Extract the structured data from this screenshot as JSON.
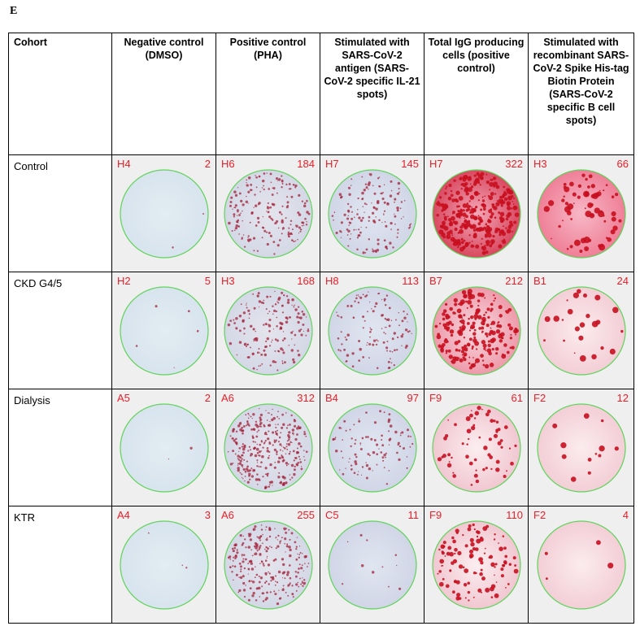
{
  "panel_letter": "E",
  "headers": [
    "Cohort",
    "Negative control (DMSO)",
    "Positive control (PHA)",
    "Stimulated with SARS-CoV-2 antigen (SARS-CoV-2 specific IL-21 spots)",
    "Total IgG producing cells (positive control)",
    "Stimulated with recombinant SARS-CoV-2 Spike His-tag Biotin Protein (SARS-CoV-2 specific B cell spots)"
  ],
  "rows": [
    {
      "cohort": "Control",
      "wells": [
        {
          "id": "H4",
          "count": "2"
        },
        {
          "id": "H6",
          "count": "184"
        },
        {
          "id": "H7",
          "count": "145"
        },
        {
          "id": "H7",
          "count": "322"
        },
        {
          "id": "H3",
          "count": "66"
        }
      ]
    },
    {
      "cohort": "CKD G4/5",
      "wells": [
        {
          "id": "H2",
          "count": "5"
        },
        {
          "id": "H3",
          "count": "168"
        },
        {
          "id": "H8",
          "count": "113"
        },
        {
          "id": "B7",
          "count": "212"
        },
        {
          "id": "B1",
          "count": "24"
        }
      ]
    },
    {
      "cohort": "Dialysis",
      "wells": [
        {
          "id": "A5",
          "count": "2"
        },
        {
          "id": "A6",
          "count": "312"
        },
        {
          "id": "B4",
          "count": "97"
        },
        {
          "id": "F9",
          "count": "61"
        },
        {
          "id": "F2",
          "count": "12"
        }
      ]
    },
    {
      "cohort": "KTR",
      "wells": [
        {
          "id": "A4",
          "count": "3"
        },
        {
          "id": "A6",
          "count": "255"
        },
        {
          "id": "C5",
          "count": "11"
        },
        {
          "id": "F9",
          "count": "110"
        },
        {
          "id": "F2",
          "count": "4"
        }
      ]
    }
  ],
  "colors": {
    "label_red": "#e8202a",
    "well_border": "#5fd35a",
    "cell_background": "#efefef"
  }
}
